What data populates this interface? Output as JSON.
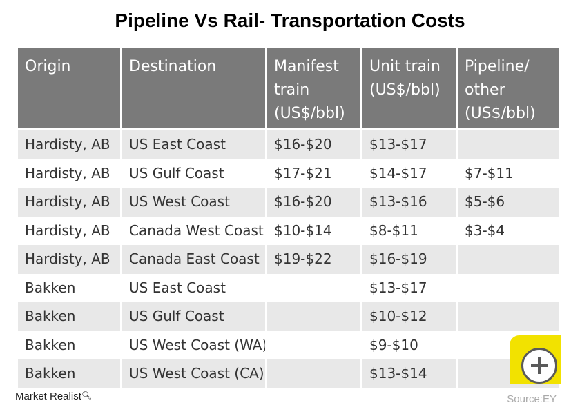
{
  "chart_data": {
    "type": "table",
    "title": "Pipeline Vs Rail- Transportation Costs",
    "columns": [
      [
        "Origin"
      ],
      [
        "Destination"
      ],
      [
        "Manifest",
        "train",
        "(US$/bbl)"
      ],
      [
        "Unit train",
        "(US$/bbl)"
      ],
      [
        "Pipeline/",
        "other",
        "(US$/bbl)"
      ]
    ],
    "rows": [
      [
        "Hardisty, AB",
        "US East Coast",
        "$16-$20",
        "$13-$17",
        ""
      ],
      [
        "Hardisty, AB",
        "US Gulf Coast",
        "$17-$21",
        "$14-$17",
        "$7-$11"
      ],
      [
        "Hardisty, AB",
        "US West Coast",
        "$16-$20",
        "$13-$16",
        "$5-$6"
      ],
      [
        "Hardisty, AB",
        "Canada West Coast",
        "$10-$14",
        "$8-$11",
        "$3-$4"
      ],
      [
        "Hardisty, AB",
        "Canada East Coast",
        "$19-$22",
        "$16-$19",
        ""
      ],
      [
        "Bakken",
        "US East Coast",
        "",
        "$13-$17",
        ""
      ],
      [
        "Bakken",
        "US Gulf Coast",
        "",
        "$10-$12",
        ""
      ],
      [
        "Bakken",
        "US West Coast (WA)",
        "",
        "$9-$10",
        ""
      ],
      [
        "Bakken",
        "US West Coast (CA)",
        "",
        "$13-$14",
        ""
      ]
    ],
    "source": "Source:EY"
  },
  "brand": "Market Realist",
  "colors": {
    "header_bg": "#7a7a7a",
    "stripe_bg": "#e8e8e8",
    "accent": "#f2e200"
  },
  "icons": {
    "brand": "magnifier-icon",
    "expand": "plus-circle-icon"
  }
}
